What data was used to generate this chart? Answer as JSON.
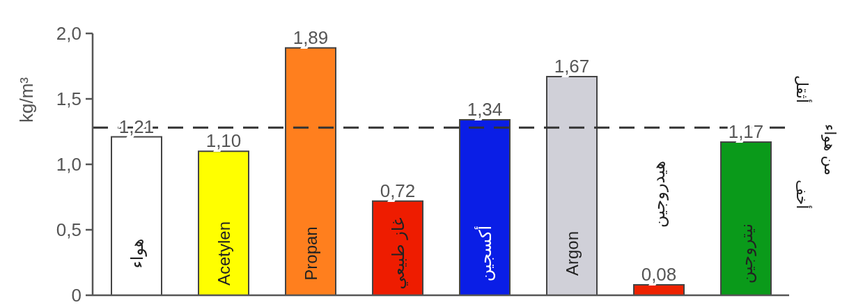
{
  "chart_data": {
    "type": "bar",
    "ylabel": "kg/m³",
    "categories": [
      "هواء",
      "Acetylen",
      "Propan",
      "غاز طبيعي",
      "أكسجين",
      "Argon",
      "هيدروجين",
      "نيتروجين"
    ],
    "values": [
      1.21,
      1.1,
      1.89,
      0.72,
      1.34,
      1.67,
      0.08,
      1.17
    ],
    "value_labels": [
      "1,21",
      "1,10",
      "1,89",
      "0,72",
      "1,34",
      "1,67",
      "0,08",
      "1,17"
    ],
    "colors": [
      "#ffffff",
      "#ffff00",
      "#ff7f1e",
      "#ee1c00",
      "#0a1ee6",
      "#d0d0d8",
      "#ee2200",
      "#0a9a1a"
    ],
    "ylim": [
      0,
      2.0
    ],
    "yticks": [
      {
        "value": 0,
        "label": "0"
      },
      {
        "value": 0.5,
        "label": "0,5"
      },
      {
        "value": 1.0,
        "label": "1,0"
      },
      {
        "value": 1.5,
        "label": "1,5"
      },
      {
        "value": 2.0,
        "label": "2,0"
      }
    ],
    "grid": false,
    "legend": false,
    "ref_lines": [
      {
        "axis": "y",
        "value": 1.28,
        "line_style": "dashed",
        "color": "#333333"
      }
    ],
    "annotations": [
      "أثقل",
      "من هواء",
      "أخف"
    ]
  }
}
